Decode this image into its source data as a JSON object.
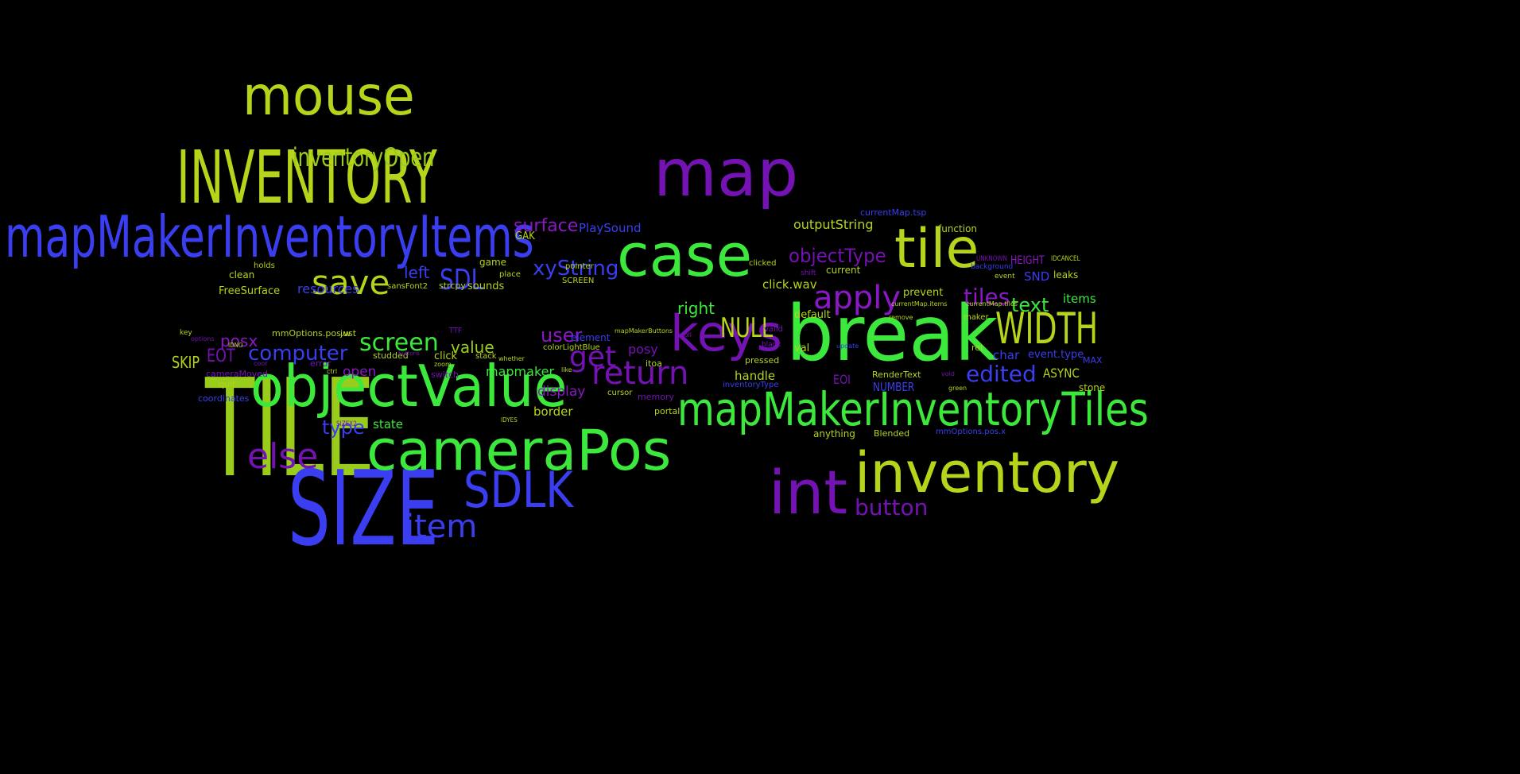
{
  "words": [
    {
      "text": "TILE",
      "color": "lime"
    },
    {
      "text": "SIZE",
      "color": "blue"
    },
    {
      "text": "mapMakerInventoryItems",
      "color": "blue"
    },
    {
      "text": "INVENTORY",
      "color": "yellowgreen"
    },
    {
      "text": "mouse",
      "color": "yellowgreen"
    },
    {
      "text": "inventoryOpen",
      "color": "lime"
    },
    {
      "text": "map",
      "color": "purple"
    },
    {
      "text": "case",
      "color": "green"
    },
    {
      "text": "tile",
      "color": "yellowgreen"
    },
    {
      "text": "break",
      "color": "green"
    },
    {
      "text": "keys",
      "color": "purple"
    },
    {
      "text": "WIDTH",
      "color": "yellowgreen"
    },
    {
      "text": "mapMakerInventoryTiles",
      "color": "green"
    },
    {
      "text": "inventory",
      "color": "yellowgreen"
    },
    {
      "text": "int",
      "color": "purple"
    },
    {
      "text": "objectValue",
      "color": "green"
    },
    {
      "text": "cameraPos",
      "color": "green"
    },
    {
      "text": "SDLK",
      "color": "blue"
    },
    {
      "text": "item",
      "color": "blue"
    },
    {
      "text": "else",
      "color": "purple"
    },
    {
      "text": "save",
      "color": "yellowgreen"
    },
    {
      "text": "SDL",
      "color": "blue"
    },
    {
      "text": "screen",
      "color": "green"
    },
    {
      "text": "computer",
      "color": "blue"
    },
    {
      "text": "return",
      "color": "purple"
    },
    {
      "text": "get",
      "color": "purple"
    },
    {
      "text": "apply",
      "color": "violet"
    },
    {
      "text": "objectType",
      "color": "purple"
    },
    {
      "text": "NULL",
      "color": "yellowgreen"
    },
    {
      "text": "tiles",
      "color": "violet"
    },
    {
      "text": "text",
      "color": "green"
    },
    {
      "text": "edited",
      "color": "blue"
    },
    {
      "text": "button",
      "color": "purple"
    },
    {
      "text": "xyString",
      "color": "blue"
    },
    {
      "text": "surface",
      "color": "violet"
    },
    {
      "text": "user",
      "color": "violet"
    },
    {
      "text": "type",
      "color": "blue"
    },
    {
      "text": "value",
      "color": "lime"
    },
    {
      "text": "posx",
      "color": "violet"
    },
    {
      "text": "EOT",
      "color": "purple"
    },
    {
      "text": "SKIP",
      "color": "yellowgreen"
    },
    {
      "text": "left",
      "color": "blue"
    },
    {
      "text": "right",
      "color": "green"
    },
    {
      "text": "mapmaker",
      "color": "green"
    },
    {
      "text": "display",
      "color": "violet"
    },
    {
      "text": "posy",
      "color": "purple"
    },
    {
      "text": "open",
      "color": "violet"
    },
    {
      "text": "outputString",
      "color": "yellowgreen"
    },
    {
      "text": "PlaySound",
      "color": "blue"
    },
    {
      "text": "resources",
      "color": "blue"
    },
    {
      "text": "FreeSurface",
      "color": "yellowgreen"
    },
    {
      "text": "click.wav",
      "color": "yellowgreen"
    },
    {
      "text": "default",
      "color": "yellowgreen"
    },
    {
      "text": "handle",
      "color": "yellowgreen"
    },
    {
      "text": "state",
      "color": "green"
    },
    {
      "text": "border",
      "color": "yellowgreen"
    },
    {
      "text": "ASYNC",
      "color": "yellowgreen"
    },
    {
      "text": "SND",
      "color": "blue"
    },
    {
      "text": "items",
      "color": "green"
    },
    {
      "text": "prevent",
      "color": "yellowgreen"
    },
    {
      "text": "function",
      "color": "yellowgreen"
    },
    {
      "text": "currentMap.tsp",
      "color": "blue"
    },
    {
      "text": "HEIGHT",
      "color": "violet"
    },
    {
      "text": "event.type",
      "color": "blue"
    },
    {
      "text": "char",
      "color": "blue"
    },
    {
      "text": "NUMBER",
      "color": "blue"
    },
    {
      "text": "stone",
      "color": "yellowgreen"
    },
    {
      "text": "leaks",
      "color": "yellowgreen"
    },
    {
      "text": "valid",
      "color": "purple"
    },
    {
      "text": "val",
      "color": "yellowgreen"
    },
    {
      "text": "anything",
      "color": "yellowgreen"
    },
    {
      "text": "Blended",
      "color": "yellowgreen"
    },
    {
      "text": "RenderText",
      "color": "yellowgreen"
    },
    {
      "text": "GAK",
      "color": "yellowgreen"
    },
    {
      "text": "game",
      "color": "yellowgreen"
    },
    {
      "text": "sounds",
      "color": "yellowgreen"
    },
    {
      "text": "sansFont2",
      "color": "yellowgreen"
    },
    {
      "text": "strcpy",
      "color": "yellowgreen"
    },
    {
      "text": "clean",
      "color": "yellowgreen"
    },
    {
      "text": "holds",
      "color": "yellowgreen"
    },
    {
      "text": "quit",
      "color": "yellowgreen"
    },
    {
      "text": "coordinates",
      "color": "blue"
    },
    {
      "text": "cameraMoved",
      "color": "purple"
    },
    {
      "text": "mmOptions.pos.w",
      "color": "yellowgreen"
    },
    {
      "text": "just",
      "color": "yellowgreen"
    },
    {
      "text": "studded",
      "color": "yellowgreen"
    },
    {
      "text": "click",
      "color": "yellowgreen"
    },
    {
      "text": "stack",
      "color": "yellowgreen"
    },
    {
      "text": "element",
      "color": "blue"
    },
    {
      "text": "itoa",
      "color": "yellowgreen"
    },
    {
      "text": "pressed",
      "color": "yellowgreen"
    },
    {
      "text": "inventoryType",
      "color": "blue"
    },
    {
      "text": "cursor",
      "color": "yellowgreen"
    },
    {
      "text": "memory",
      "color": "purple"
    },
    {
      "text": "portal",
      "color": "yellowgreen"
    },
    {
      "text": "SCREEN",
      "color": "yellowgreen"
    },
    {
      "text": "pointer",
      "color": "yellowgreen"
    },
    {
      "text": "clicked",
      "color": "yellowgreen"
    },
    {
      "text": "current",
      "color": "yellowgreen"
    },
    {
      "text": "colorLightBlue",
      "color": "yellowgreen"
    },
    {
      "text": "mapMakerButtons",
      "color": "yellowgreen"
    },
    {
      "text": "blank",
      "color": "purple"
    },
    {
      "text": "ret",
      "color": "yellowgreen"
    },
    {
      "text": "maker",
      "color": "yellowgreen"
    },
    {
      "text": "MAX",
      "color": "blue"
    },
    {
      "text": "IDCANCEL",
      "color": "yellowgreen"
    },
    {
      "text": "UNKNOWN",
      "color": "purple"
    },
    {
      "text": "background",
      "color": "blue"
    },
    {
      "text": "event",
      "color": "yellowgreen"
    },
    {
      "text": "currentMap.items",
      "color": "yellowgreen"
    },
    {
      "text": "currentMap.tiles",
      "color": "yellowgreen"
    },
    {
      "text": "mmOptions.pos.x",
      "color": "blue"
    },
    {
      "text": "EOI",
      "color": "purple"
    },
    {
      "text": "TTF",
      "color": "purple"
    },
    {
      "text": "place",
      "color": "yellowgreen"
    },
    {
      "text": "IDNO",
      "color": "yellowgreen"
    },
    {
      "text": "key",
      "color": "yellowgreen"
    },
    {
      "text": "error",
      "color": "purple"
    },
    {
      "text": "switch",
      "color": "purple"
    },
    {
      "text": "IDYES",
      "color": "yellowgreen"
    },
    {
      "text": "SIZEX2",
      "color": "purple"
    },
    {
      "text": "whether",
      "color": "yellowgreen"
    },
    {
      "text": "zoom",
      "color": "yellowgreen"
    },
    {
      "text": "like",
      "color": "yellowgreen"
    },
    {
      "text": "scroll",
      "color": "purple"
    },
    {
      "text": "green",
      "color": "yellowgreen"
    },
    {
      "text": "remove",
      "color": "yellowgreen"
    },
    {
      "text": "update",
      "color": "blue"
    },
    {
      "text": "shift",
      "color": "purple"
    },
    {
      "text": "void",
      "color": "purple"
    },
    {
      "text": "options",
      "color": "purple"
    },
    {
      "text": "ctrl",
      "color": "yellowgreen"
    },
    {
      "text": "coor",
      "color": "purple"
    },
    {
      "text": "buttons",
      "color": "purple"
    }
  ]
}
